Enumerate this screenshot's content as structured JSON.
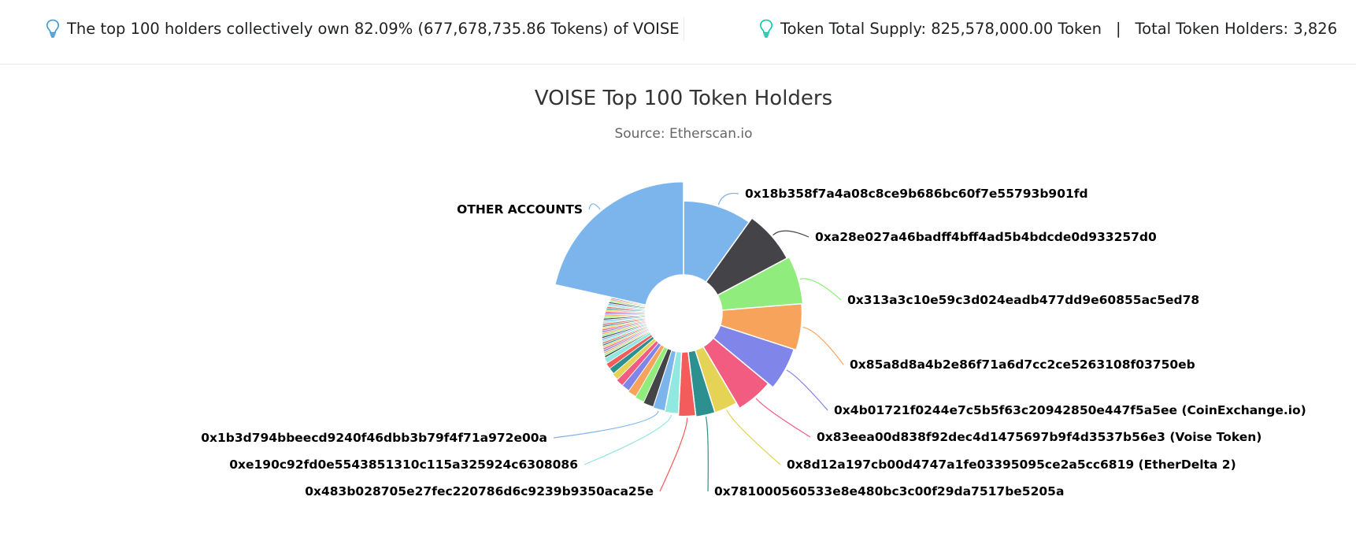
{
  "summary": {
    "top_holders_text": "The top 100 holders collectively own 82.09% (677,678,735.86 Tokens) of VOISE",
    "total_supply_text": "Token Total Supply: 825,578,000.00 Token",
    "separator": "|",
    "total_holders_text": "Total Token Holders: 3,826"
  },
  "icons": {
    "left": "lightbulb-icon",
    "right": "lightbulb-icon",
    "left_color": "#3498db",
    "right_color": "#00c9a7"
  },
  "chart_data": {
    "type": "pie",
    "title": "VOISE Top 100 Token Holders",
    "subtitle": "Source: Etherscan.io",
    "variable_radius": true,
    "inner_radius_ratio": 0.18,
    "start_angle_deg": 0,
    "small_holder_count": 34,
    "slices": [
      {
        "label": "0x18b358f7a4a08c8ce9b686bc60f7e55793b901fd",
        "value": 9.9,
        "radius": 0.94,
        "color": "#7cb5ec"
      },
      {
        "label": "0xa28e027a46badff4bff4ad5b4bdcde0d933257d0",
        "value": 7.3,
        "radius": 0.98,
        "color": "#434348"
      },
      {
        "label": "0x313a3c10e59c3d024eadb477dd9e60855ac5ed78",
        "value": 6.5,
        "radius": 1.0,
        "color": "#90ed7d"
      },
      {
        "label": "0x85a8d8a4b2e86f71a6d7cc2ce5263108f03750eb",
        "value": 6.3,
        "radius": 0.99,
        "color": "#f7a35c"
      },
      {
        "label": "0x4b01721f0244e7c5b5f63c20942850e447f5a5ee (CoinExchange.io)",
        "value": 6.0,
        "radius": 0.97,
        "color": "#8085e9"
      },
      {
        "label": "0x83eea00d838f92dec4d1475697b9f4d3537b56e3 (Voise Token)",
        "value": 5.5,
        "radius": 0.92,
        "color": "#f15c80"
      },
      {
        "label": "0x8d12a197cb00d4747a1fe03395095ce2a5cc6819 (EtherDelta 2)",
        "value": 3.6,
        "radius": 0.87,
        "color": "#e4d354"
      },
      {
        "label": "0x781000560533e8e480bc3c00f29da7517be5205a",
        "value": 3.0,
        "radius": 0.87,
        "color": "#2b908f"
      },
      {
        "label": "0x483b028705e27fec220786d6c9239b9350aca25e",
        "value": 2.7,
        "radius": 0.86,
        "color": "#f45b5b"
      },
      {
        "label": "0xe190c92fd0e5543851310c115a325924c6308086",
        "value": 2.2,
        "radius": 0.84,
        "color": "#91e8e1"
      },
      {
        "label": "0x1b3d794bbeecd9240f46dbb3b79f4f71a972e00a",
        "value": 2.0,
        "radius": 0.83,
        "color": "#7cb5ec"
      },
      {
        "label": "",
        "value": 1.7,
        "radius": 0.82,
        "color": "#434348"
      },
      {
        "label": "",
        "value": 1.6,
        "radius": 0.81,
        "color": "#90ed7d"
      },
      {
        "label": "",
        "value": 1.5,
        "radius": 0.8,
        "color": "#f7a35c"
      },
      {
        "label": "",
        "value": 1.4,
        "radius": 0.79,
        "color": "#8085e9"
      },
      {
        "label": "",
        "value": 1.3,
        "radius": 0.79,
        "color": "#f15c80"
      },
      {
        "label": "",
        "value": 1.2,
        "radius": 0.78,
        "color": "#e4d354"
      },
      {
        "label": "",
        "value": 1.1,
        "radius": 0.77,
        "color": "#2b908f"
      },
      {
        "label": "",
        "value": 1.0,
        "radius": 0.77,
        "color": "#f45b5b"
      },
      {
        "label": "",
        "value": 1.0,
        "radius": 0.76,
        "color": "#91e8e1"
      },
      {
        "label": "OTHER ACCOUNTS",
        "value": 21.5,
        "radius": 1.1,
        "color": "#7cb5ec"
      }
    ]
  }
}
